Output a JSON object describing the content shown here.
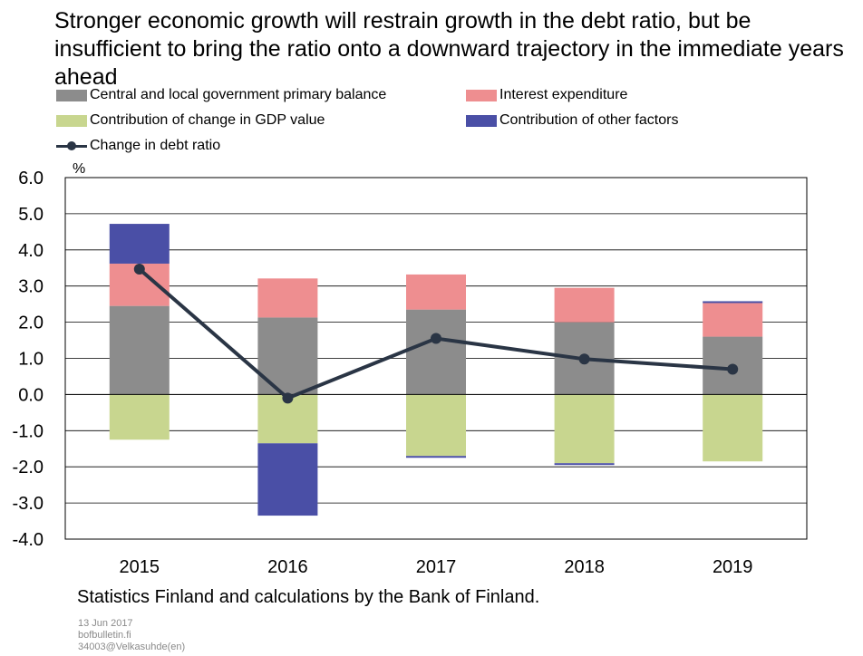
{
  "title": "Stronger economic growth will restrain growth in the debt ratio, but be insufficient to bring the ratio onto a downward trajectory in the immediate years ahead",
  "source": "Statistics Finland and calculations by the Bank of Finland.",
  "date": "13 Jun 2017",
  "site": "bofbulletin.fi",
  "code": "34003@Velkasuhde(en)",
  "chart_data": {
    "type": "bar",
    "stacked": true,
    "categories": [
      "2015",
      "2016",
      "2017",
      "2018",
      "2019"
    ],
    "ylabel": "%",
    "ylim": [
      -4.0,
      6.0
    ],
    "yticks": [
      6.0,
      5.0,
      4.0,
      3.0,
      2.0,
      1.0,
      0.0,
      -1.0,
      -2.0,
      -3.0,
      -4.0
    ],
    "ytick_labels": [
      "6.0",
      "5.0",
      "4.0",
      "3.0",
      "2.0",
      "1.0",
      "0.0",
      "-1.0",
      "-2.0",
      "-3.0",
      "-4.0"
    ],
    "grid": true,
    "legend_position": "top",
    "series": [
      {
        "name": "Central and local government primary balance",
        "color": "#8c8c8c",
        "values": [
          2.45,
          2.13,
          2.35,
          2.0,
          1.6
        ]
      },
      {
        "name": "Interest expenditure",
        "color": "#ee8e90",
        "values": [
          1.17,
          1.08,
          0.97,
          0.95,
          0.93
        ]
      },
      {
        "name": "Contribution of change in GDP value",
        "color": "#c8d68f",
        "values": [
          -1.25,
          -1.35,
          -1.7,
          -1.9,
          -1.85
        ]
      },
      {
        "name": "Contribution of other factors",
        "color": "#4a4fa6",
        "values": [
          1.1,
          -2.0,
          -0.05,
          -0.05,
          0.05
        ]
      }
    ],
    "line": {
      "name": "Change in debt ratio",
      "color": "#2a3545",
      "values": [
        3.47,
        -0.1,
        1.55,
        0.98,
        0.7
      ]
    }
  }
}
